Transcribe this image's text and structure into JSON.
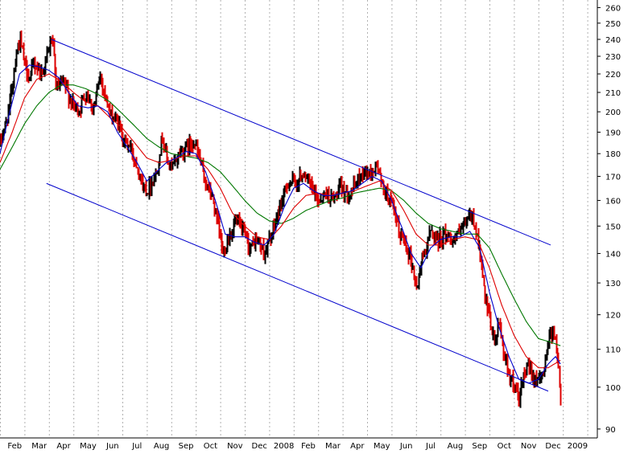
{
  "chart_data": {
    "type": "line",
    "title": "",
    "xlabel": "",
    "ylabel": "",
    "scale": "log",
    "ylim": [
      88,
      265
    ],
    "grid": "vertical dotted",
    "y_ticks": [
      260,
      250,
      240,
      230,
      220,
      210,
      200,
      190,
      180,
      170,
      160,
      150,
      140,
      130,
      120,
      110,
      100,
      90
    ],
    "x_ticks": [
      "Feb",
      "Mar",
      "Apr",
      "May",
      "Jun",
      "Jul",
      "Aug",
      "Sep",
      "Oct",
      "Nov",
      "Dec",
      "2008",
      "Feb",
      "Mar",
      "Apr",
      "May",
      "Jun",
      "Jul",
      "Aug",
      "Sep",
      "Oct",
      "Nov",
      "Dec",
      "2009"
    ],
    "x_positions": [
      0.6,
      1.6,
      2.6,
      3.6,
      4.6,
      5.6,
      6.6,
      7.6,
      8.6,
      9.6,
      10.6,
      11.6,
      12.6,
      13.6,
      14.6,
      15.6,
      16.6,
      17.6,
      18.6,
      19.6,
      20.6,
      21.6,
      22.6,
      23.6
    ],
    "colors": {
      "up_bar": "#000000",
      "down_bar": "#dd0000",
      "ma_short": "#0000cc",
      "ma_mid": "#dd0000",
      "ma_long": "#007700",
      "channel": "#0000cc",
      "grid": "#b0b0b0"
    },
    "price_path": [
      [
        0.0,
        185
      ],
      [
        0.3,
        198
      ],
      [
        0.5,
        215
      ],
      [
        0.65,
        232
      ],
      [
        0.8,
        240
      ],
      [
        1.0,
        225
      ],
      [
        1.2,
        218
      ],
      [
        1.4,
        226
      ],
      [
        1.7,
        220
      ],
      [
        1.9,
        230
      ],
      [
        2.1,
        241
      ],
      [
        2.3,
        212
      ],
      [
        2.6,
        215
      ],
      [
        2.9,
        205
      ],
      [
        3.2,
        200
      ],
      [
        3.5,
        210
      ],
      [
        3.8,
        202
      ],
      [
        4.1,
        219
      ],
      [
        4.3,
        208
      ],
      [
        4.5,
        198
      ],
      [
        4.8,
        195
      ],
      [
        5.0,
        187
      ],
      [
        5.3,
        183
      ],
      [
        5.6,
        175
      ],
      [
        5.8,
        166
      ],
      [
        6.0,
        164
      ],
      [
        6.2,
        168
      ],
      [
        6.4,
        172
      ],
      [
        6.6,
        188
      ],
      [
        6.8,
        178
      ],
      [
        7.0,
        173
      ],
      [
        7.3,
        180
      ],
      [
        7.6,
        183
      ],
      [
        7.9,
        186
      ],
      [
        8.2,
        175
      ],
      [
        8.4,
        167
      ],
      [
        8.7,
        160
      ],
      [
        8.9,
        150
      ],
      [
        9.1,
        140
      ],
      [
        9.3,
        145
      ],
      [
        9.6,
        152
      ],
      [
        9.9,
        148
      ],
      [
        10.2,
        142
      ],
      [
        10.5,
        145
      ],
      [
        10.8,
        140
      ],
      [
        11.0,
        145
      ],
      [
        11.2,
        150
      ],
      [
        11.5,
        160
      ],
      [
        11.8,
        168
      ],
      [
        12.1,
        167
      ],
      [
        12.4,
        172
      ],
      [
        12.7,
        165
      ],
      [
        13.0,
        160
      ],
      [
        13.3,
        163
      ],
      [
        13.6,
        160
      ],
      [
        13.9,
        165
      ],
      [
        14.2,
        163
      ],
      [
        14.5,
        166
      ],
      [
        14.8,
        172
      ],
      [
        15.1,
        171
      ],
      [
        15.4,
        175
      ],
      [
        15.6,
        166
      ],
      [
        15.9,
        160
      ],
      [
        16.1,
        155
      ],
      [
        16.3,
        147
      ],
      [
        16.5,
        145
      ],
      [
        16.8,
        137
      ],
      [
        17.0,
        128
      ],
      [
        17.2,
        137
      ],
      [
        17.4,
        143
      ],
      [
        17.6,
        148
      ],
      [
        17.9,
        145
      ],
      [
        18.2,
        147
      ],
      [
        18.5,
        145
      ],
      [
        18.8,
        148
      ],
      [
        19.0,
        150
      ],
      [
        19.2,
        155
      ],
      [
        19.4,
        150
      ],
      [
        19.6,
        140
      ],
      [
        19.8,
        125
      ],
      [
        20.0,
        118
      ],
      [
        20.2,
        112
      ],
      [
        20.4,
        118
      ],
      [
        20.6,
        108
      ],
      [
        20.8,
        103
      ],
      [
        21.0,
        100
      ],
      [
        21.2,
        97
      ],
      [
        21.4,
        103
      ],
      [
        21.6,
        105
      ],
      [
        21.8,
        103
      ],
      [
        22.0,
        101
      ],
      [
        22.2,
        104
      ],
      [
        22.4,
        113
      ],
      [
        22.6,
        116
      ],
      [
        22.8,
        105
      ],
      [
        22.9,
        98
      ]
    ],
    "ma_short_path": [
      [
        0.0,
        180
      ],
      [
        0.4,
        200
      ],
      [
        0.8,
        220
      ],
      [
        1.2,
        225
      ],
      [
        1.6,
        224
      ],
      [
        2.0,
        222
      ],
      [
        2.4,
        218
      ],
      [
        2.8,
        210
      ],
      [
        3.2,
        203
      ],
      [
        3.6,
        202
      ],
      [
        4.0,
        203
      ],
      [
        4.4,
        200
      ],
      [
        4.8,
        190
      ],
      [
        5.2,
        183
      ],
      [
        5.6,
        176
      ],
      [
        6.0,
        168
      ],
      [
        6.4,
        172
      ],
      [
        6.8,
        176
      ],
      [
        7.2,
        178
      ],
      [
        7.6,
        181
      ],
      [
        8.0,
        180
      ],
      [
        8.4,
        172
      ],
      [
        8.8,
        160
      ],
      [
        9.2,
        147
      ],
      [
        9.6,
        146
      ],
      [
        10.0,
        146
      ],
      [
        10.4,
        144
      ],
      [
        10.8,
        143
      ],
      [
        11.2,
        147
      ],
      [
        11.6,
        157
      ],
      [
        12.0,
        165
      ],
      [
        12.4,
        167
      ],
      [
        12.8,
        164
      ],
      [
        13.2,
        162
      ],
      [
        13.6,
        162
      ],
      [
        14.0,
        163
      ],
      [
        14.4,
        164
      ],
      [
        14.8,
        167
      ],
      [
        15.2,
        170
      ],
      [
        15.6,
        168
      ],
      [
        16.0,
        160
      ],
      [
        16.4,
        150
      ],
      [
        16.8,
        140
      ],
      [
        17.2,
        135
      ],
      [
        17.6,
        142
      ],
      [
        18.0,
        145
      ],
      [
        18.4,
        146
      ],
      [
        18.8,
        146
      ],
      [
        19.2,
        148
      ],
      [
        19.6,
        142
      ],
      [
        20.0,
        127
      ],
      [
        20.4,
        116
      ],
      [
        20.8,
        108
      ],
      [
        21.2,
        102
      ],
      [
        21.6,
        101
      ],
      [
        22.0,
        102
      ],
      [
        22.4,
        106
      ],
      [
        22.7,
        108
      ],
      [
        22.9,
        106
      ]
    ],
    "ma_mid_path": [
      [
        0.0,
        176
      ],
      [
        0.5,
        190
      ],
      [
        1.0,
        207
      ],
      [
        1.5,
        217
      ],
      [
        2.0,
        220
      ],
      [
        2.5,
        216
      ],
      [
        3.0,
        210
      ],
      [
        3.5,
        205
      ],
      [
        4.0,
        203
      ],
      [
        4.5,
        197
      ],
      [
        5.0,
        192
      ],
      [
        5.5,
        185
      ],
      [
        6.0,
        178
      ],
      [
        6.5,
        176
      ],
      [
        7.0,
        177
      ],
      [
        7.5,
        179
      ],
      [
        8.0,
        179
      ],
      [
        8.5,
        173
      ],
      [
        9.0,
        165
      ],
      [
        9.5,
        155
      ],
      [
        10.0,
        150
      ],
      [
        10.5,
        146
      ],
      [
        11.0,
        145
      ],
      [
        11.5,
        150
      ],
      [
        12.0,
        157
      ],
      [
        12.5,
        162
      ],
      [
        13.0,
        163
      ],
      [
        13.5,
        162
      ],
      [
        14.0,
        163
      ],
      [
        14.5,
        164
      ],
      [
        15.0,
        166
      ],
      [
        15.5,
        168
      ],
      [
        16.0,
        164
      ],
      [
        16.5,
        156
      ],
      [
        17.0,
        147
      ],
      [
        17.5,
        143
      ],
      [
        18.0,
        143
      ],
      [
        18.5,
        145
      ],
      [
        19.0,
        146
      ],
      [
        19.5,
        145
      ],
      [
        20.0,
        135
      ],
      [
        20.5,
        123
      ],
      [
        21.0,
        114
      ],
      [
        21.5,
        108
      ],
      [
        22.0,
        105
      ],
      [
        22.4,
        105
      ],
      [
        22.9,
        107
      ]
    ],
    "ma_long_path": [
      [
        0.0,
        173
      ],
      [
        0.5,
        183
      ],
      [
        1.0,
        194
      ],
      [
        1.5,
        203
      ],
      [
        2.0,
        210
      ],
      [
        2.5,
        214
      ],
      [
        3.0,
        214
      ],
      [
        3.5,
        212
      ],
      [
        4.0,
        209
      ],
      [
        4.5,
        205
      ],
      [
        5.0,
        199
      ],
      [
        5.5,
        193
      ],
      [
        6.0,
        187
      ],
      [
        6.5,
        183
      ],
      [
        7.0,
        180
      ],
      [
        7.5,
        179
      ],
      [
        8.0,
        178
      ],
      [
        8.5,
        176
      ],
      [
        9.0,
        172
      ],
      [
        9.5,
        166
      ],
      [
        10.0,
        160
      ],
      [
        10.5,
        155
      ],
      [
        11.0,
        152
      ],
      [
        11.5,
        151
      ],
      [
        12.0,
        153
      ],
      [
        12.5,
        156
      ],
      [
        13.0,
        158
      ],
      [
        13.5,
        160
      ],
      [
        14.0,
        161
      ],
      [
        14.5,
        163
      ],
      [
        15.0,
        164
      ],
      [
        15.5,
        165
      ],
      [
        16.0,
        164
      ],
      [
        16.5,
        160
      ],
      [
        17.0,
        155
      ],
      [
        17.5,
        151
      ],
      [
        18.0,
        149
      ],
      [
        18.5,
        148
      ],
      [
        19.0,
        147
      ],
      [
        19.5,
        147
      ],
      [
        20.0,
        142
      ],
      [
        20.5,
        133
      ],
      [
        21.0,
        125
      ],
      [
        21.5,
        118
      ],
      [
        22.0,
        113
      ],
      [
        22.5,
        112
      ],
      [
        22.9,
        111
      ]
    ],
    "channel_upper": [
      [
        2.1,
        240
      ],
      [
        22.5,
        143
      ]
    ],
    "channel_lower": [
      [
        1.9,
        167
      ],
      [
        22.4,
        99
      ]
    ]
  }
}
